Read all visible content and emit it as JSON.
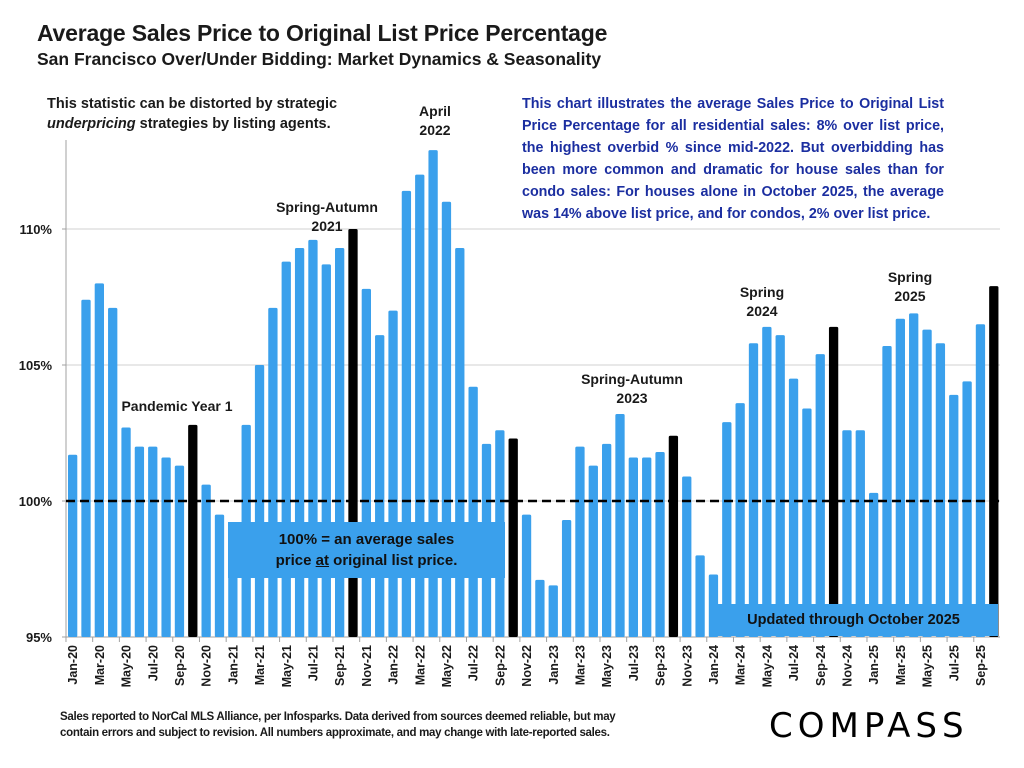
{
  "header": {
    "title": "Average Sales Price to Original List Price Percentage",
    "subtitle": "San Francisco Over/Under Bidding: Market Dynamics & Seasonality"
  },
  "notes": {
    "left_part1": "This statistic can be distorted by strategic ",
    "left_em": "underpricing",
    "left_part2": " strategies by listing agents.",
    "right": "This chart illustrates the average Sales Price to Original List Price Percentage for all residential sales:  8% over list price, the highest overbid % since mid-2022. But overbidding has been more common and dramatic for house sales than for condo sales:  For houses alone in October 2025, the average was 14% above list price, and for condos, 2% over list price."
  },
  "callouts": {
    "baseline_line1": "100% = an average sales",
    "baseline_pre": "price ",
    "baseline_u": "at",
    "baseline_post": " original list price.",
    "updated": "Updated through October 2025"
  },
  "footer": {
    "line1": "Sales reported to NorCal MLS Alliance, per Infosparks. Data derived from sources deemed reliable, but may",
    "line2": "contain errors and subject to revision. All numbers approximate, and may change with late-reported sales.",
    "logo": "COMPASS"
  },
  "colors": {
    "bar": "#3aa0ec",
    "highlight_bar": "#000000",
    "note_text": "#1b2ea0",
    "gridline": "#d0d0d0",
    "reference_line": "#000000"
  },
  "chart_data": {
    "type": "bar",
    "title": "Average Sales Price to Original List Price Percentage",
    "xlabel": "",
    "ylabel": "",
    "ylim": [
      95,
      113.5
    ],
    "yticks": [
      95,
      100,
      105,
      110
    ],
    "ytick_labels": [
      "95%",
      "100%",
      "105%",
      "110%"
    ],
    "grid": true,
    "reference_line": {
      "value": 100,
      "style": "dashed"
    },
    "highlight_months": [
      "Oct-20",
      "Oct-21",
      "Oct-22",
      "Oct-23",
      "Oct-24",
      "Oct-25"
    ],
    "categories": [
      "Jan-20",
      "Feb-20",
      "Mar-20",
      "Apr-20",
      "May-20",
      "Jun-20",
      "Jul-20",
      "Aug-20",
      "Sep-20",
      "Oct-20",
      "Nov-20",
      "Dec-20",
      "Jan-21",
      "Feb-21",
      "Mar-21",
      "Apr-21",
      "May-21",
      "Jun-21",
      "Jul-21",
      "Aug-21",
      "Sep-21",
      "Oct-21",
      "Nov-21",
      "Dec-21",
      "Jan-22",
      "Feb-22",
      "Mar-22",
      "Apr-22",
      "May-22",
      "Jun-22",
      "Jul-22",
      "Aug-22",
      "Sep-22",
      "Oct-22",
      "Nov-22",
      "Dec-22",
      "Jan-23",
      "Feb-23",
      "Mar-23",
      "Apr-23",
      "May-23",
      "Jun-23",
      "Jul-23",
      "Aug-23",
      "Sep-23",
      "Oct-23",
      "Nov-23",
      "Dec-23",
      "Jan-24",
      "Feb-24",
      "Mar-24",
      "Apr-24",
      "May-24",
      "Jun-24",
      "Jul-24",
      "Aug-24",
      "Sep-24",
      "Oct-24",
      "Nov-24",
      "Dec-24",
      "Jan-25",
      "Feb-25",
      "Mar-25",
      "Apr-25",
      "May-25",
      "Jun-25",
      "Jul-25",
      "Aug-25",
      "Sep-25",
      "Oct-25"
    ],
    "values": [
      101.7,
      107.4,
      108.0,
      107.1,
      102.7,
      102.0,
      102.0,
      101.6,
      101.3,
      102.8,
      100.6,
      99.5,
      99.2,
      102.8,
      105.0,
      107.1,
      108.8,
      109.3,
      109.6,
      108.7,
      109.3,
      110.0,
      107.8,
      106.1,
      107.0,
      111.4,
      112.0,
      112.9,
      111.0,
      109.3,
      104.2,
      102.1,
      102.6,
      102.3,
      99.5,
      97.1,
      96.9,
      99.3,
      102.0,
      101.3,
      102.1,
      103.2,
      101.6,
      101.6,
      101.8,
      102.4,
      100.9,
      98.0,
      97.3,
      102.9,
      103.6,
      105.8,
      106.4,
      106.1,
      104.5,
      103.4,
      105.4,
      106.4,
      102.6,
      102.6,
      100.3,
      105.7,
      106.7,
      106.9,
      106.3,
      105.8,
      103.9,
      104.4,
      106.5,
      107.9
    ],
    "tick_label_every": 2,
    "annotations": [
      {
        "lines": [
          "Pandemic Year 1"
        ],
        "near": "Oct-20"
      },
      {
        "lines": [
          "Spring-Autumn",
          "2021"
        ],
        "near": "Jun-21"
      },
      {
        "lines": [
          "April",
          "2022"
        ],
        "near": "Apr-22"
      },
      {
        "lines": [
          "Spring-Autumn",
          "2023"
        ],
        "near": "Jul-23"
      },
      {
        "lines": [
          "Spring",
          "2024"
        ],
        "near": "May-24"
      },
      {
        "lines": [
          "Spring",
          "2025"
        ],
        "near": "Apr-25"
      }
    ]
  }
}
